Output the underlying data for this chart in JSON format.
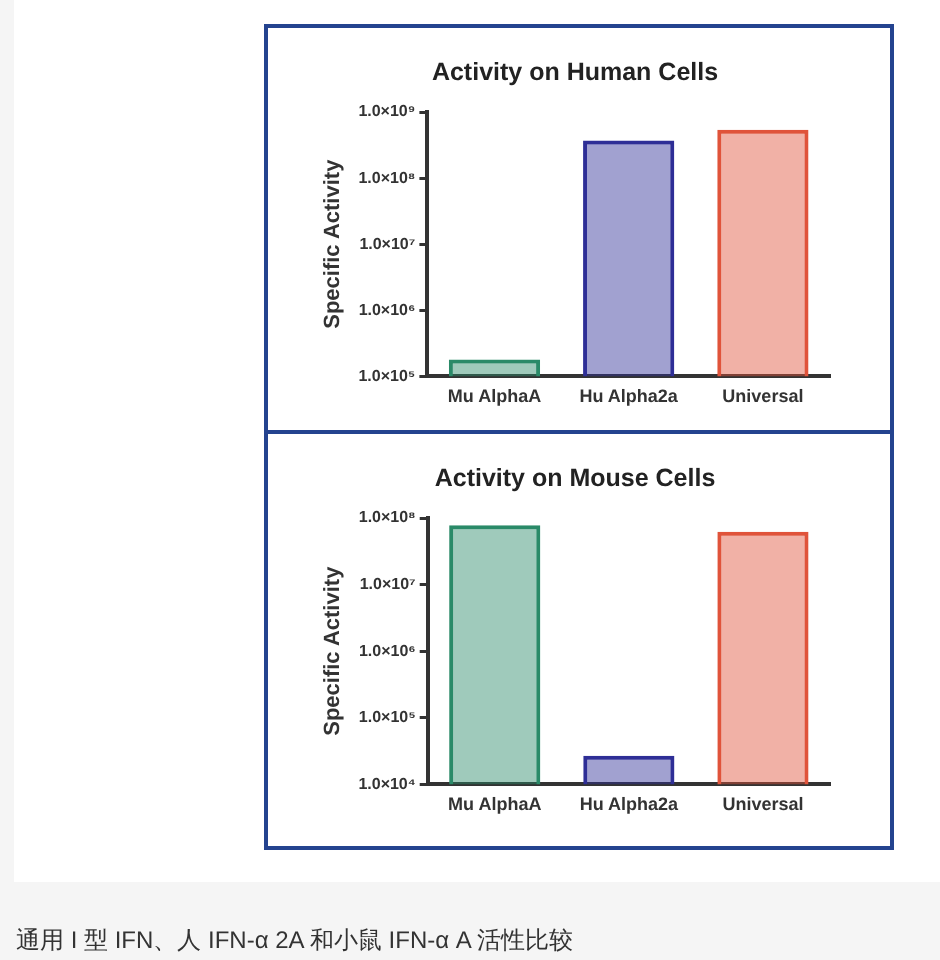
{
  "chart_data": [
    {
      "type": "bar",
      "title": "Activity on Human Cells",
      "ylabel": "Specific Activity",
      "categories": [
        "Mu AlphaA",
        "Hu Alpha2a",
        "Universal"
      ],
      "values": [
        180000,
        370000000,
        540000000
      ],
      "colors": [
        "#2a8a68",
        "#2e2e96",
        "#e0533a"
      ],
      "log": true,
      "ylim": [
        100000,
        1000000000
      ],
      "yticks": [
        {
          "value": 100000,
          "label": "1.0×10⁵"
        },
        {
          "value": 1000000,
          "label": "1.0×10⁶"
        },
        {
          "value": 10000000,
          "label": "1.0×10⁷"
        },
        {
          "value": 100000000,
          "label": "1.0×10⁸"
        },
        {
          "value": 1000000000,
          "label": "1.0×10⁹"
        }
      ]
    },
    {
      "type": "bar",
      "title": "Activity on Mouse Cells",
      "ylabel": "Specific Activity",
      "categories": [
        "Mu AlphaA",
        "Hu Alpha2a",
        "Universal"
      ],
      "values": [
        78000000,
        27000,
        62000000
      ],
      "colors": [
        "#2a8a68",
        "#2e2e96",
        "#e0533a"
      ],
      "log": true,
      "ylim": [
        10000,
        100000000
      ],
      "yticks": [
        {
          "value": 10000,
          "label": "1.0×10⁴"
        },
        {
          "value": 100000,
          "label": "1.0×10⁵"
        },
        {
          "value": 1000000,
          "label": "1.0×10⁶"
        },
        {
          "value": 10000000,
          "label": "1.0×10⁷"
        },
        {
          "value": 100000000,
          "label": "1.0×10⁸"
        }
      ],
      "annotations": [
        "通用 I 型 IFN、人 IFN-α 2A 和小鼠 IFN-α A 活性比较"
      ]
    }
  ]
}
